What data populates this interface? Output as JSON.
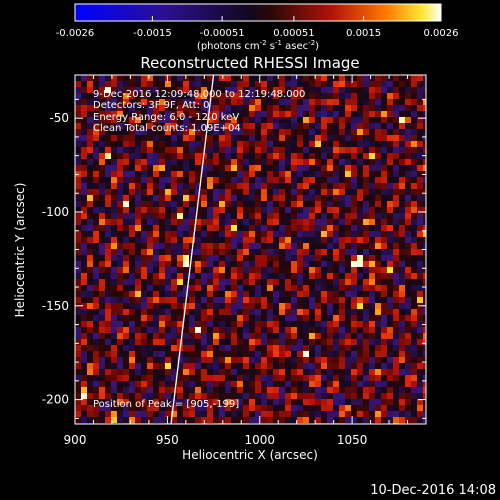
{
  "chart_data": {
    "type": "heatmap",
    "title": "Reconstructed RHESSI Image",
    "xlabel": "Heliocentric X (arcsec)",
    "ylabel": "Heliocentric Y (arcsec)",
    "xlim": [
      900,
      1090
    ],
    "ylim": [
      -213,
      -27
    ],
    "x_ticks": [
      900,
      950,
      1000,
      1050
    ],
    "y_ticks": [
      -50,
      -100,
      -150,
      -200
    ],
    "colorbar": {
      "range": [
        -0.0026,
        0.0026
      ],
      "tick_labels": [
        "-0.0026",
        "-0.0015",
        "-0.00051",
        "0.00051",
        "0.0015",
        "0.0026"
      ],
      "units_main": "(photons cm",
      "units_exp1": "-2",
      "units_mid1": " s",
      "units_exp2": "-1",
      "units_mid2": " asec",
      "units_exp3": "-2",
      "units_end": ")"
    },
    "info": {
      "time_range": "9-Dec-2016 12:09:48.000 to 12:19:48.000",
      "detectors": "Detectors: 3F 9F, Att: 0",
      "energy_range": "Energy Range: 6.0 - 12.0 keV",
      "clean": "Clean     Total counts: 1.09E+04"
    },
    "peak_label": "Position of Peak = [905,-199]",
    "peak": {
      "x": 905,
      "y": -199
    },
    "limb_line": [
      [
        952,
        -213
      ],
      [
        975,
        -27
      ]
    ],
    "bright_spots": [
      {
        "x": 1053,
        "y": -128
      },
      {
        "x": 1063,
        "y": -133
      },
      {
        "x": 960,
        "y": -126
      },
      {
        "x": 905,
        "y": -199
      },
      {
        "x": 1009,
        "y": -178
      }
    ]
  },
  "timestamp": "10-Dec-2016 14:08"
}
